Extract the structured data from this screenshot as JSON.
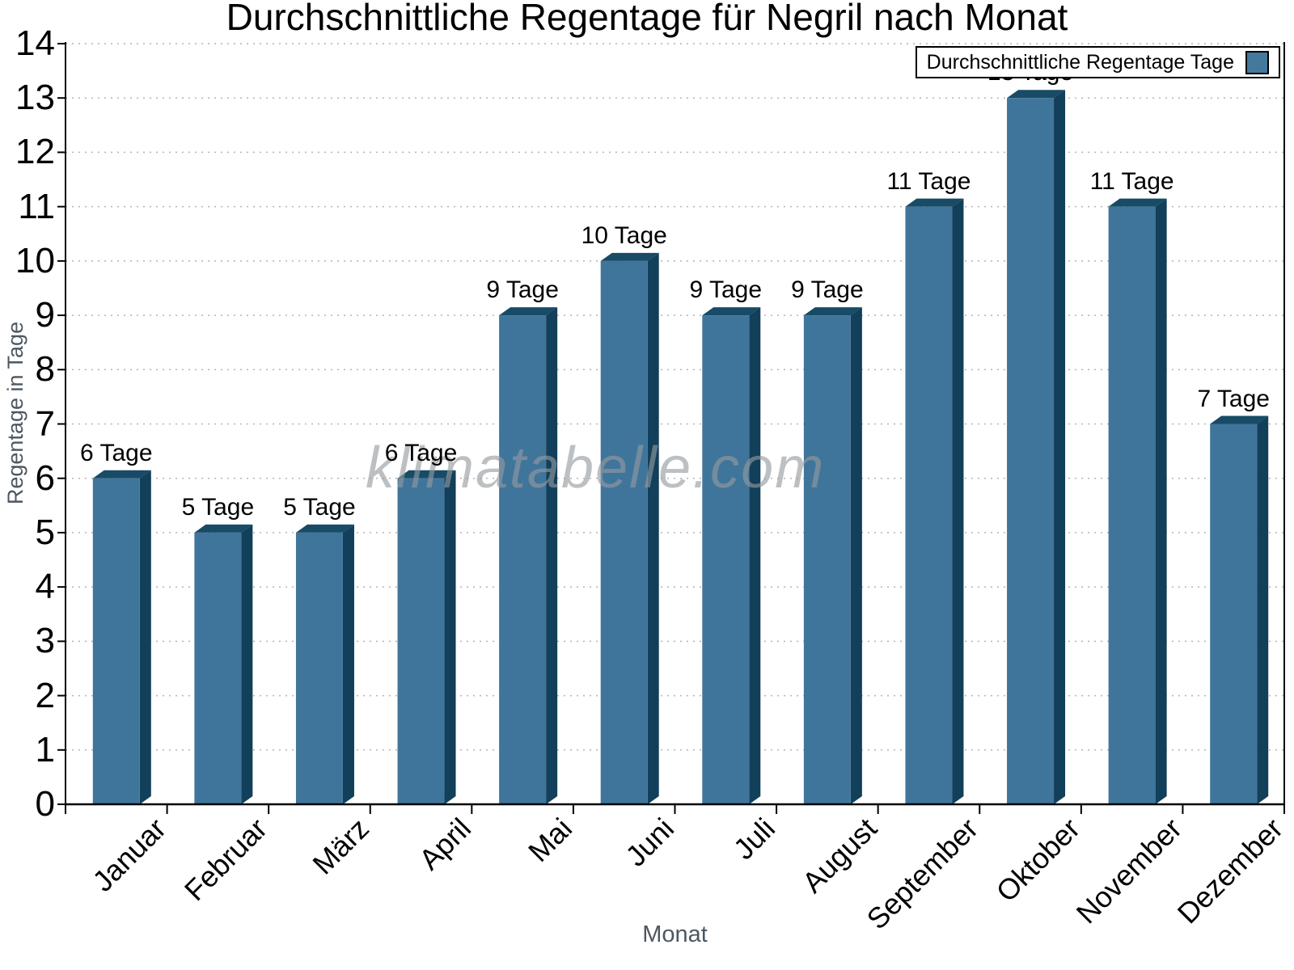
{
  "title": "Durchschnittliche Regentage für Negril nach Monat",
  "watermark": "klimatabelle.com",
  "legend": {
    "label": "Durchschnittliche Regentage Tage"
  },
  "axes": {
    "x_title": "Monat",
    "y_title": "Regentage in Tage"
  },
  "chart_data": {
    "type": "bar",
    "title": "Durchschnittliche Regentage für Negril nach Monat",
    "categories": [
      "Januar",
      "Februar",
      "März",
      "April",
      "Mai",
      "Juni",
      "Juli",
      "August",
      "September",
      "Oktober",
      "November",
      "Dezember"
    ],
    "series": [
      {
        "name": "Durchschnittliche Regentage",
        "values": [
          6,
          5,
          5,
          6,
          9,
          10,
          9,
          9,
          11,
          13,
          11,
          7
        ]
      }
    ],
    "value_labels": [
      "6 Tage",
      "5 Tage",
      "5 Tage",
      "6 Tage",
      "9 Tage",
      "10 Tage",
      "9 Tage",
      "9 Tage",
      "11 Tage",
      "13 Tage",
      "11 Tage",
      "7 Tage"
    ],
    "xlabel": "Monat",
    "ylabel": "Regentage in Tage",
    "ylim": [
      0,
      14
    ],
    "ytick_step": 1,
    "grid": "horizontal-dotted",
    "legend_position": "top-right",
    "bar_style": "3d-oblique",
    "colors": {
      "bar_face": "#40759b",
      "bar_side": "#123f5a",
      "bar_top": "#174b66",
      "legend_square": "#45789d",
      "grid": "#b4b4b4",
      "axis": "#000000",
      "axis_title": "#4d5761",
      "watermark": "#969ba0",
      "value_label": "#000000"
    }
  }
}
